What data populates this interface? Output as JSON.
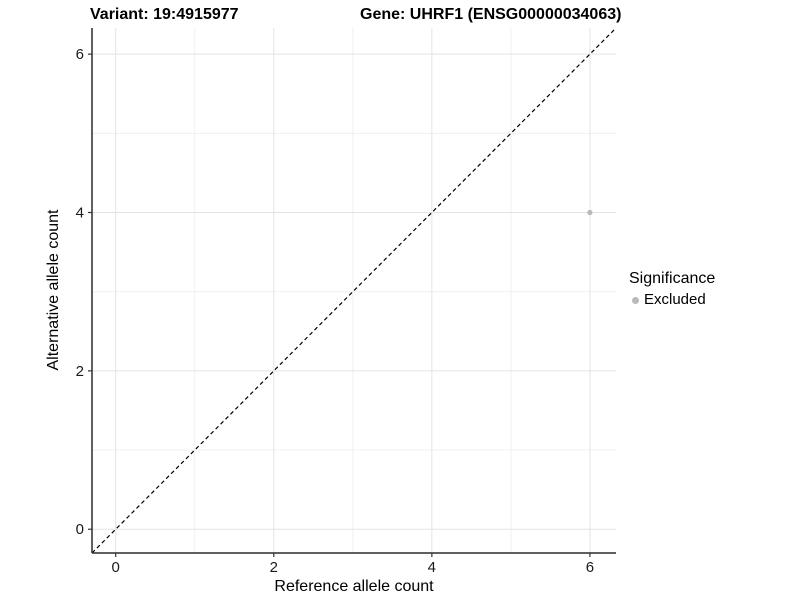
{
  "titles": {
    "variant": "Variant: 19:4915977",
    "gene": "Gene: UHRF1 (ENSG00000034063)"
  },
  "legend": {
    "title": "Significance",
    "items": [
      {
        "label": "Excluded",
        "color": "#b9b9b9",
        "marker": "circle"
      }
    ]
  },
  "colors": {
    "background": "#ffffff",
    "point": "#b9b9b9",
    "grid_major": "#e3e3e3",
    "grid_minor": "#f0f0f0",
    "axis_line": "#2b2b2b",
    "tick_mark": "#333333",
    "tick_label": "#1a1a1a",
    "identity_line": "#000000",
    "title_text": "#000000"
  },
  "chart_data": {
    "type": "scatter",
    "title": "",
    "xlabel": "Reference allele count",
    "ylabel": "Alternative allele count",
    "xticks": [
      0,
      2,
      4,
      6
    ],
    "yticks": [
      0,
      2,
      4,
      6
    ],
    "minor_ticks": [
      1,
      3,
      5
    ],
    "xlim": [
      -0.3,
      6.33
    ],
    "ylim": [
      -0.3,
      6.33
    ],
    "grid": "on",
    "legend_position": "right",
    "series": [
      {
        "name": "Excluded",
        "points": [
          {
            "x": 6,
            "y": 4
          }
        ]
      }
    ],
    "identity_line": {
      "type": "abline y=x",
      "style": "dashed",
      "from": [
        -0.3,
        -0.3
      ],
      "to": [
        6.33,
        6.33
      ]
    }
  }
}
